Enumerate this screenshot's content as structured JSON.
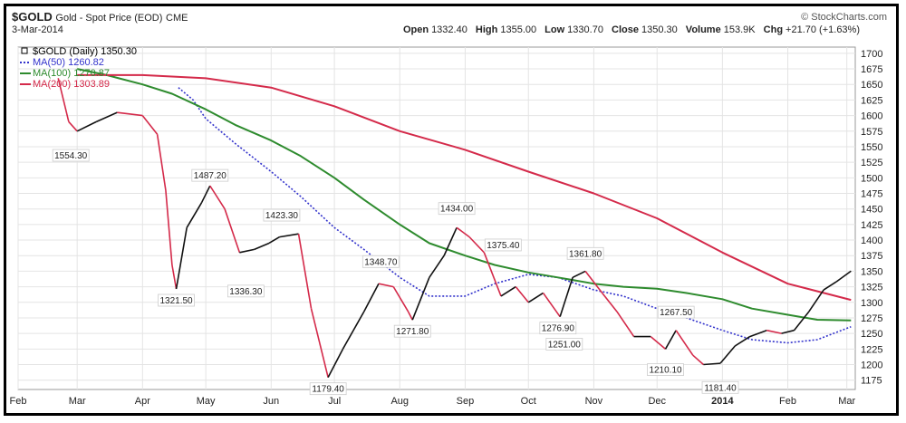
{
  "header": {
    "symbol": "$GOLD",
    "description": "Gold - Spot Price (EOD)",
    "exchange": "CME",
    "date": "3-Mar-2014",
    "credit": "© StockCharts.com",
    "open_label": "Open",
    "open": "1332.40",
    "high_label": "High",
    "high": "1355.00",
    "low_label": "Low",
    "low": "1330.70",
    "close_label": "Close",
    "close": "1350.30",
    "volume_label": "Volume",
    "volume": "153.9K",
    "chg_label": "Chg",
    "chg": "+21.70 (+1.63%)"
  },
  "legend": [
    {
      "text": "$GOLD (Daily) 1350.30",
      "color": "#000000",
      "style": "price"
    },
    {
      "text": "MA(50) 1260.82",
      "color": "#3333cc",
      "style": "dotted"
    },
    {
      "text": "MA(100) 1270.87",
      "color": "#2e8b2e",
      "style": "solid"
    },
    {
      "text": "MA(200) 1303.89",
      "color": "#d42a4a",
      "style": "solid"
    }
  ],
  "chart_data": {
    "type": "line",
    "ylim": [
      1160,
      1710
    ],
    "y_ticks": [
      1175,
      1200,
      1225,
      1250,
      1275,
      1300,
      1325,
      1350,
      1375,
      1400,
      1425,
      1450,
      1475,
      1500,
      1525,
      1550,
      1575,
      1600,
      1625,
      1650,
      1675,
      1700
    ],
    "x_range": [
      "2013-02-01",
      "2014-03-05"
    ],
    "x_ticks": [
      {
        "label": "Feb",
        "date": "2013-02-01",
        "bold": false
      },
      {
        "label": "Mar",
        "date": "2013-03-01",
        "bold": false
      },
      {
        "label": "Apr",
        "date": "2013-04-01",
        "bold": false
      },
      {
        "label": "May",
        "date": "2013-05-01",
        "bold": false
      },
      {
        "label": "Jun",
        "date": "2013-06-01",
        "bold": false
      },
      {
        "label": "Jul",
        "date": "2013-07-01",
        "bold": false
      },
      {
        "label": "Aug",
        "date": "2013-08-01",
        "bold": false
      },
      {
        "label": "Sep",
        "date": "2013-09-01",
        "bold": false
      },
      {
        "label": "Oct",
        "date": "2013-10-01",
        "bold": false
      },
      {
        "label": "Nov",
        "date": "2013-11-01",
        "bold": false
      },
      {
        "label": "Dec",
        "date": "2013-12-01",
        "bold": false
      },
      {
        "label": "2014",
        "date": "2014-01-01",
        "bold": true
      },
      {
        "label": "Feb",
        "date": "2014-02-01",
        "bold": false
      },
      {
        "label": "Mar",
        "date": "2014-03-01",
        "bold": false
      }
    ],
    "grid": true,
    "price_series": {
      "name": "$GOLD (Daily)",
      "points": [
        [
          "2013-02-20",
          1660
        ],
        [
          "2013-02-25",
          1590
        ],
        [
          "2013-03-01",
          1575
        ],
        [
          "2013-03-10",
          1590
        ],
        [
          "2013-03-20",
          1605
        ],
        [
          "2013-04-01",
          1600
        ],
        [
          "2013-04-08",
          1570
        ],
        [
          "2013-04-12",
          1480
        ],
        [
          "2013-04-15",
          1360
        ],
        [
          "2013-04-17",
          1321.5
        ],
        [
          "2013-04-22",
          1420
        ],
        [
          "2013-04-29",
          1460
        ],
        [
          "2013-05-03",
          1487.2
        ],
        [
          "2013-05-10",
          1450
        ],
        [
          "2013-05-17",
          1380
        ],
        [
          "2013-05-24",
          1385
        ],
        [
          "2013-05-31",
          1395
        ],
        [
          "2013-06-05",
          1405
        ],
        [
          "2013-06-14",
          1410
        ],
        [
          "2013-06-20",
          1290
        ],
        [
          "2013-06-28",
          1179.4
        ],
        [
          "2013-07-05",
          1225
        ],
        [
          "2013-07-15",
          1285
        ],
        [
          "2013-07-22",
          1330
        ],
        [
          "2013-07-29",
          1325
        ],
        [
          "2013-08-05",
          1285
        ],
        [
          "2013-08-07",
          1271.8
        ],
        [
          "2013-08-15",
          1340
        ],
        [
          "2013-08-22",
          1375
        ],
        [
          "2013-08-28",
          1420
        ],
        [
          "2013-09-03",
          1405
        ],
        [
          "2013-09-10",
          1380
        ],
        [
          "2013-09-18",
          1310
        ],
        [
          "2013-09-25",
          1325
        ],
        [
          "2013-10-01",
          1300
        ],
        [
          "2013-10-08",
          1315
        ],
        [
          "2013-10-16",
          1276.9
        ],
        [
          "2013-10-22",
          1340
        ],
        [
          "2013-10-28",
          1350
        ],
        [
          "2013-11-05",
          1315
        ],
        [
          "2013-11-12",
          1285
        ],
        [
          "2013-11-20",
          1245
        ],
        [
          "2013-11-28",
          1245
        ],
        [
          "2013-12-05",
          1225
        ],
        [
          "2013-12-10",
          1255
        ],
        [
          "2013-12-18",
          1215
        ],
        [
          "2013-12-23",
          1200
        ],
        [
          "2013-12-31",
          1202
        ],
        [
          "2014-01-07",
          1230
        ],
        [
          "2014-01-14",
          1245
        ],
        [
          "2014-01-22",
          1255
        ],
        [
          "2014-01-29",
          1250
        ],
        [
          "2014-02-04",
          1255
        ],
        [
          "2014-02-11",
          1285
        ],
        [
          "2014-02-18",
          1320
        ],
        [
          "2014-02-24",
          1333
        ],
        [
          "2014-03-03",
          1350.3
        ]
      ]
    },
    "moving_averages": [
      {
        "name": "MA(50)",
        "color": "#3333cc",
        "style": "dotted",
        "points": [
          [
            "2013-04-18",
            1645
          ],
          [
            "2013-04-25",
            1625
          ],
          [
            "2013-05-01",
            1595
          ],
          [
            "2013-05-15",
            1555
          ],
          [
            "2013-06-01",
            1510
          ],
          [
            "2013-06-15",
            1470
          ],
          [
            "2013-07-01",
            1420
          ],
          [
            "2013-07-15",
            1385
          ],
          [
            "2013-08-01",
            1340
          ],
          [
            "2013-08-15",
            1310
          ],
          [
            "2013-09-01",
            1310
          ],
          [
            "2013-09-15",
            1330
          ],
          [
            "2013-10-01",
            1345
          ],
          [
            "2013-10-15",
            1340
          ],
          [
            "2013-11-01",
            1320
          ],
          [
            "2013-11-15",
            1310
          ],
          [
            "2013-12-01",
            1290
          ],
          [
            "2013-12-15",
            1275
          ],
          [
            "2014-01-01",
            1255
          ],
          [
            "2014-01-15",
            1240
          ],
          [
            "2014-02-01",
            1235
          ],
          [
            "2014-02-15",
            1240
          ],
          [
            "2014-03-03",
            1260.82
          ]
        ]
      },
      {
        "name": "MA(100)",
        "color": "#2e8b2e",
        "style": "solid",
        "points": [
          [
            "2013-03-01",
            1675
          ],
          [
            "2013-03-15",
            1665
          ],
          [
            "2013-04-01",
            1650
          ],
          [
            "2013-04-15",
            1635
          ],
          [
            "2013-05-01",
            1610
          ],
          [
            "2013-05-15",
            1585
          ],
          [
            "2013-06-01",
            1560
          ],
          [
            "2013-06-15",
            1535
          ],
          [
            "2013-07-01",
            1500
          ],
          [
            "2013-07-15",
            1465
          ],
          [
            "2013-08-01",
            1425
          ],
          [
            "2013-08-15",
            1395
          ],
          [
            "2013-09-01",
            1375
          ],
          [
            "2013-09-15",
            1360
          ],
          [
            "2013-10-01",
            1348
          ],
          [
            "2013-10-15",
            1340
          ],
          [
            "2013-11-01",
            1330
          ],
          [
            "2013-11-15",
            1325
          ],
          [
            "2013-12-01",
            1322
          ],
          [
            "2013-12-15",
            1315
          ],
          [
            "2014-01-01",
            1305
          ],
          [
            "2014-01-15",
            1290
          ],
          [
            "2014-02-01",
            1280
          ],
          [
            "2014-02-15",
            1272
          ],
          [
            "2014-03-03",
            1270.87
          ]
        ]
      },
      {
        "name": "MA(200)",
        "color": "#d42a4a",
        "style": "solid",
        "points": [
          [
            "2013-03-01",
            1665
          ],
          [
            "2013-04-01",
            1665
          ],
          [
            "2013-05-01",
            1660
          ],
          [
            "2013-06-01",
            1645
          ],
          [
            "2013-07-01",
            1615
          ],
          [
            "2013-08-01",
            1575
          ],
          [
            "2013-09-01",
            1545
          ],
          [
            "2013-10-01",
            1510
          ],
          [
            "2013-11-01",
            1475
          ],
          [
            "2013-12-01",
            1435
          ],
          [
            "2014-01-01",
            1380
          ],
          [
            "2014-02-01",
            1330
          ],
          [
            "2014-03-03",
            1303.89
          ]
        ]
      }
    ],
    "annotations": [
      {
        "text": "1554.30",
        "date": "2013-02-26",
        "value": 1554.3,
        "place": "below"
      },
      {
        "text": "1321.50",
        "date": "2013-04-17",
        "value": 1321.5,
        "place": "below"
      },
      {
        "text": "1487.20",
        "date": "2013-05-03",
        "value": 1487.2,
        "place": "above"
      },
      {
        "text": "1336.30",
        "date": "2013-05-20",
        "value": 1336.3,
        "place": "below"
      },
      {
        "text": "1423.30",
        "date": "2013-06-06",
        "value": 1423.3,
        "place": "above"
      },
      {
        "text": "1179.40",
        "date": "2013-06-28",
        "value": 1179.4,
        "place": "below"
      },
      {
        "text": "1348.70",
        "date": "2013-07-23",
        "value": 1348.7,
        "place": "above"
      },
      {
        "text": "1271.80",
        "date": "2013-08-07",
        "value": 1271.8,
        "place": "below"
      },
      {
        "text": "1434.00",
        "date": "2013-08-28",
        "value": 1434.0,
        "place": "above"
      },
      {
        "text": "1375.40",
        "date": "2013-09-19",
        "value": 1375.4,
        "place": "above"
      },
      {
        "text": "1276.90",
        "date": "2013-10-15",
        "value": 1276.9,
        "place": "below"
      },
      {
        "text": "1251.00",
        "date": "2013-10-18",
        "value": 1251.0,
        "place": "below"
      },
      {
        "text": "1361.80",
        "date": "2013-10-28",
        "value": 1361.8,
        "place": "above"
      },
      {
        "text": "1267.50",
        "date": "2013-12-10",
        "value": 1267.5,
        "place": "above"
      },
      {
        "text": "1210.10",
        "date": "2013-12-05",
        "value": 1210.1,
        "place": "below"
      },
      {
        "text": "1181.40",
        "date": "2013-12-31",
        "value": 1181.4,
        "place": "below"
      }
    ]
  }
}
